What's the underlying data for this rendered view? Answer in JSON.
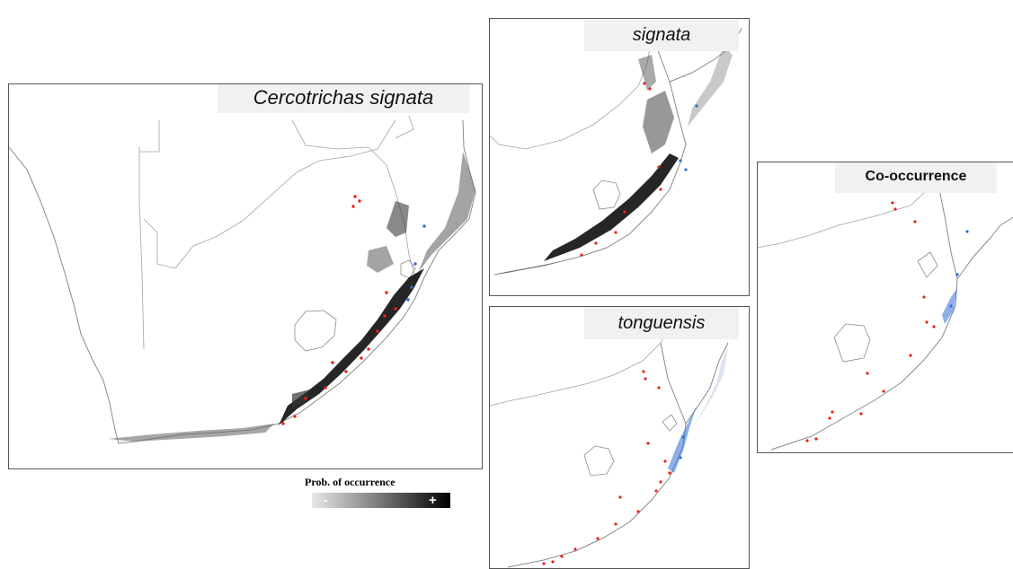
{
  "panels": {
    "main": {
      "title": "Cercotrichas signata"
    },
    "signata": {
      "title": "signata"
    },
    "tonguensis": {
      "title": "tonguensis"
    },
    "cooccurrence": {
      "title": "Co-occurrence"
    }
  },
  "legend": {
    "title": "Prob. of occurrence",
    "low_label": "-",
    "high_label": "+"
  },
  "colors": {
    "signata_points": "#e8201e",
    "tonguensis_points": "#2f6fd6",
    "probability_high": "#000000",
    "probability_low": "#e8e8e8",
    "border_lines": "#9a9a9a"
  }
}
